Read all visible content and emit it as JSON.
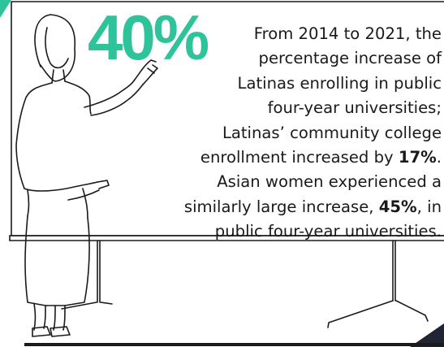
{
  "stat": {
    "value": "40%"
  },
  "lines": {
    "l1": "From 2014 to 2021, the",
    "l2": "percentage increase of",
    "l3": "Latinas enrolling in public",
    "l4": "four-year universities;",
    "l5": "Latinas’ community college",
    "l6_pre": "enrollment increased by ",
    "l6_bold": "17%",
    "l6_post": ".",
    "l7": "Asian women experienced a",
    "l8_pre": "similarly large increase, ",
    "l8_bold": "45%",
    "l8_post": ", in",
    "l9": "public four-year universities."
  },
  "colors": {
    "accent": "#2ec39a",
    "ink": "#1a1a1a",
    "band": "#1f2533"
  }
}
